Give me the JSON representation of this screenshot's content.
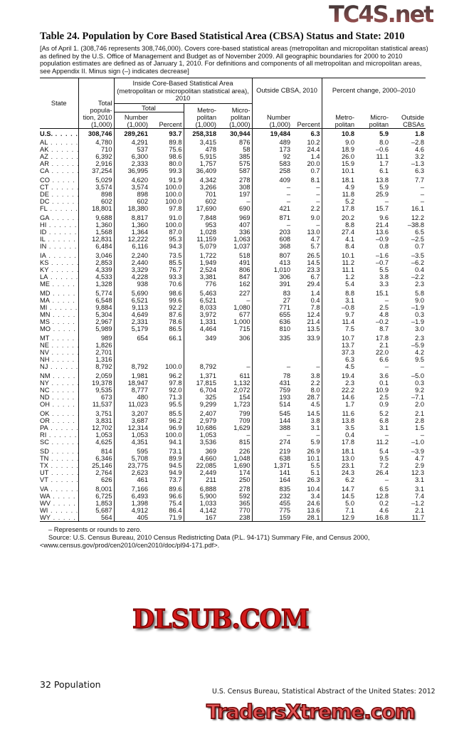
{
  "title": "Table 24. Population by Core Based Statistical Area (CBSA) Status and State: 2010",
  "intro": "[As of April 1. (308,746 represents 308,746,000). Covers core-based statistical areas (metropolitan and micropolitan statistical areas) as defined by the U.S. Office of Management and Budget as of November 2009. All geographic boundaries for 2000 to 2010 population estimates are defined as of January 1, 2010. For definitions and components of all metropolitan and micropolitan areas, see Appendix II. Minus sign (–) indicates decrease]",
  "table": {
    "headers": {
      "state": "State",
      "total_pop": "Total popula- tion, 2010 (1,000)",
      "inside_cbsa": "Inside Core-Based Statistical Area (metropolitan or micropolitan statistical area), 2010",
      "total": "Total",
      "number": "Number (1,000)",
      "percent": "Percent",
      "metro": "Metro- politan (1,000)",
      "micro": "Micro- politan (1,000)",
      "outside_cbsa": "Outside CBSA, 2010",
      "out_number": "Number (1,000)",
      "out_percent": "Percent",
      "pct_change": "Percent change, 2000–2010",
      "pc_metro": "Metro- politan",
      "pc_micro": "Micro- politan",
      "pc_outside": "Outside CBSAs"
    },
    "us_row": [
      "U.S.",
      "308,746",
      "289,261",
      "93.7",
      "258,318",
      "30,944",
      "19,484",
      "6.3",
      "10.8",
      "5.9",
      "1.8"
    ],
    "groups": [
      [
        [
          "AL",
          "4,780",
          "4,291",
          "89.8",
          "3,415",
          "876",
          "489",
          "10.2",
          "9.0",
          "8.0",
          "–2.8"
        ],
        [
          "AK",
          "710",
          "537",
          "75.6",
          "478",
          "58",
          "173",
          "24.4",
          "18.9",
          "–0.6",
          "4.6"
        ],
        [
          "AZ",
          "6,392",
          "6,300",
          "98.6",
          "5,915",
          "385",
          "92",
          "1.4",
          "26.0",
          "11.1",
          "3.2"
        ],
        [
          "AR",
          "2,916",
          "2,333",
          "80.0",
          "1,757",
          "575",
          "583",
          "20.0",
          "15.9",
          "1.7",
          "–1.3"
        ],
        [
          "CA",
          "37,254",
          "36,995",
          "99.3",
          "36,409",
          "587",
          "258",
          "0.7",
          "10.1",
          "6.1",
          "6.3"
        ]
      ],
      [
        [
          "CO",
          "5,029",
          "4,620",
          "91.9",
          "4,342",
          "278",
          "409",
          "8.1",
          "18.1",
          "13.8",
          "7.7"
        ],
        [
          "CT",
          "3,574",
          "3,574",
          "100.0",
          "3,266",
          "308",
          "–",
          "–",
          "4.9",
          "5.9",
          "–"
        ],
        [
          "DE",
          "898",
          "898",
          "100.0",
          "701",
          "197",
          "–",
          "–",
          "11.8",
          "25.9",
          "–"
        ],
        [
          "DC",
          "602",
          "602",
          "100.0",
          "602",
          "–",
          "–",
          "–",
          "5.2",
          "–",
          "–"
        ],
        [
          "FL",
          "18,801",
          "18,380",
          "97.8",
          "17,690",
          "690",
          "421",
          "2.2",
          "17.8",
          "15.7",
          "16.1"
        ]
      ],
      [
        [
          "GA",
          "9,688",
          "8,817",
          "91.0",
          "7,848",
          "969",
          "871",
          "9.0",
          "20.2",
          "9.6",
          "12.2"
        ],
        [
          "HI",
          "1,360",
          "1,360",
          "100.0",
          "953",
          "407",
          "–",
          "–",
          "8.8",
          "21.4",
          "–38.8"
        ],
        [
          "ID",
          "1,568",
          "1,364",
          "87.0",
          "1,028",
          "336",
          "203",
          "13.0",
          "27.4",
          "13.6",
          "6.5"
        ],
        [
          "IL",
          "12,831",
          "12,222",
          "95.3",
          "11,159",
          "1,063",
          "608",
          "4.7",
          "4.1",
          "–0.9",
          "–2.5"
        ],
        [
          "IN",
          "6,484",
          "6,116",
          "94.3",
          "5,079",
          "1,037",
          "368",
          "5.7",
          "8.4",
          "0.8",
          "0.7"
        ]
      ],
      [
        [
          "IA",
          "3,046",
          "2,240",
          "73.5",
          "1,722",
          "518",
          "807",
          "26.5",
          "10.1",
          "–1.6",
          "–3.5"
        ],
        [
          "KS",
          "2,853",
          "2,440",
          "85.5",
          "1,949",
          "491",
          "413",
          "14.5",
          "11.2",
          "–0.7",
          "–6.2"
        ],
        [
          "KY",
          "4,339",
          "3,329",
          "76.7",
          "2,524",
          "806",
          "1,010",
          "23.3",
          "11.1",
          "5.5",
          "0.4"
        ],
        [
          "LA",
          "4,533",
          "4,228",
          "93.3",
          "3,381",
          "847",
          "306",
          "6.7",
          "1.2",
          "3.8",
          "–2.2"
        ],
        [
          "ME",
          "1,328",
          "938",
          "70.6",
          "776",
          "162",
          "391",
          "29.4",
          "5.4",
          "3.3",
          "2.3"
        ]
      ],
      [
        [
          "MD",
          "5,774",
          "5,690",
          "98.6",
          "5,463",
          "227",
          "83",
          "1.4",
          "8.8",
          "15.1",
          "5.8"
        ],
        [
          "MA",
          "6,548",
          "6,521",
          "99.6",
          "6,521",
          "–",
          "27",
          "0.4",
          "3.1",
          "–",
          "9.0"
        ],
        [
          "MI",
          "9,884",
          "9,113",
          "92.2",
          "8,033",
          "1,080",
          "771",
          "7.8",
          "–0.8",
          "2.5",
          "–1.9"
        ],
        [
          "MN",
          "5,304",
          "4,649",
          "87.6",
          "3,972",
          "677",
          "655",
          "12.4",
          "9.7",
          "4.8",
          "0.3"
        ],
        [
          "MS",
          "2,967",
          "2,331",
          "78.6",
          "1,331",
          "1,000",
          "636",
          "21.4",
          "11.4",
          "–0.2",
          "–1.9"
        ],
        [
          "MO",
          "5,989",
          "5,179",
          "86.5",
          "4,464",
          "715",
          "810",
          "13.5",
          "7.5",
          "8.7",
          "3.0"
        ]
      ],
      [
        [
          "MT",
          "989",
          "654",
          "66.1",
          "349",
          "306",
          "335",
          "33.9",
          "10.7",
          "17.8",
          "2.3"
        ],
        [
          "NE",
          "1,826",
          "",
          "",
          "",
          "",
          "",
          "",
          "13.7",
          "2.1",
          "–5.9"
        ],
        [
          "NV",
          "2,701",
          "",
          "",
          "",
          "",
          "",
          "",
          "37.3",
          "22.0",
          "4.2"
        ],
        [
          "NH",
          "1,316",
          "",
          "",
          "",
          "",
          "",
          "",
          "6.3",
          "6.6",
          "9.5"
        ],
        [
          "NJ",
          "8,792",
          "8,792",
          "100.0",
          "8,792",
          "–",
          "–",
          "–",
          "4.5",
          "–",
          "–"
        ]
      ],
      [
        [
          "NM",
          "2,059",
          "1,981",
          "96.2",
          "1,371",
          "611",
          "78",
          "3.8",
          "19.4",
          "3.6",
          "–5.0"
        ],
        [
          "NY",
          "19,378",
          "18,947",
          "97.8",
          "17,815",
          "1,132",
          "431",
          "2.2",
          "2.3",
          "0.1",
          "0.3"
        ],
        [
          "NC",
          "9,535",
          "8,777",
          "92.0",
          "6,704",
          "2,072",
          "759",
          "8.0",
          "22.2",
          "10.9",
          "9.2"
        ],
        [
          "ND",
          "673",
          "480",
          "71.3",
          "325",
          "154",
          "193",
          "28.7",
          "14.6",
          "2.5",
          "–7.1"
        ],
        [
          "OH",
          "11,537",
          "11,023",
          "95.5",
          "9,299",
          "1,723",
          "514",
          "4.5",
          "1.7",
          "0.9",
          "2.0"
        ]
      ],
      [
        [
          "OK",
          "3,751",
          "3,207",
          "85.5",
          "2,407",
          "799",
          "545",
          "14.5",
          "11.6",
          "5.2",
          "2.1"
        ],
        [
          "OR",
          "3,831",
          "3,687",
          "96.2",
          "2,979",
          "709",
          "144",
          "3.8",
          "13.8",
          "6.8",
          "2.8"
        ],
        [
          "PA",
          "12,702",
          "12,314",
          "96.9",
          "10,686",
          "1,629",
          "388",
          "3.1",
          "3.5",
          "3.1",
          "1.5"
        ],
        [
          "RI",
          "1,053",
          "1,053",
          "100.0",
          "1,053",
          "–",
          "–",
          "–",
          "0.4",
          "–",
          "–"
        ],
        [
          "SC",
          "4,625",
          "4,351",
          "94.1",
          "3,536",
          "815",
          "274",
          "5.9",
          "17.8",
          "11.2",
          "–1.0"
        ]
      ],
      [
        [
          "SD",
          "814",
          "595",
          "73.1",
          "369",
          "226",
          "219",
          "26.9",
          "18.1",
          "5.4",
          "–3.9"
        ],
        [
          "TN",
          "6,346",
          "5,708",
          "89.9",
          "4,660",
          "1,048",
          "638",
          "10.1",
          "13.0",
          "9.5",
          "4.7"
        ],
        [
          "TX",
          "25,146",
          "23,775",
          "94.5",
          "22,085",
          "1,690",
          "1,371",
          "5.5",
          "23.1",
          "7.2",
          "2.9"
        ],
        [
          "UT",
          "2,764",
          "2,623",
          "94.9",
          "2,449",
          "174",
          "141",
          "5.1",
          "24.3",
          "26.4",
          "12.3"
        ],
        [
          "VT",
          "626",
          "461",
          "73.7",
          "211",
          "250",
          "164",
          "26.3",
          "6.2",
          "–",
          "3.1"
        ]
      ],
      [
        [
          "VA",
          "8,001",
          "7,166",
          "89.6",
          "6,888",
          "278",
          "835",
          "10.4",
          "14.7",
          "6.5",
          "3.1"
        ],
        [
          "WA",
          "6,725",
          "6,493",
          "96.6",
          "5,900",
          "592",
          "232",
          "3.4",
          "14.5",
          "12.8",
          "7.4"
        ],
        [
          "WV",
          "1,853",
          "1,398",
          "75.4",
          "1,033",
          "365",
          "455",
          "24.6",
          "5.0",
          "0.2",
          "–1.2"
        ],
        [
          "WI",
          "5,687",
          "4,912",
          "86.4",
          "4,142",
          "770",
          "775",
          "13.6",
          "7.1",
          "4.6",
          "2.1"
        ],
        [
          "WY",
          "564",
          "405",
          "71.9",
          "167",
          "238",
          "159",
          "28.1",
          "12.9",
          "16.8",
          "11.7"
        ]
      ]
    ]
  },
  "notes": {
    "zero": "– Represents or rounds to zero.",
    "source": "Source: U.S. Census Bureau, 2010 Census Redistricting Data (P.L. 94-171) Summary File, and Census 2000,",
    "url": "<www.census.gov/prod/cen2010/cen2010/doc/pl94-171.pdf>."
  },
  "footer": {
    "page": "32  Population",
    "publication": "U.S. Census Bureau, Statistical Abstract of the United States: 2012"
  },
  "watermarks": {
    "top": "TC4S.net",
    "middle": "DLSUB.COM",
    "bottom": "TradersXtreme.com"
  }
}
